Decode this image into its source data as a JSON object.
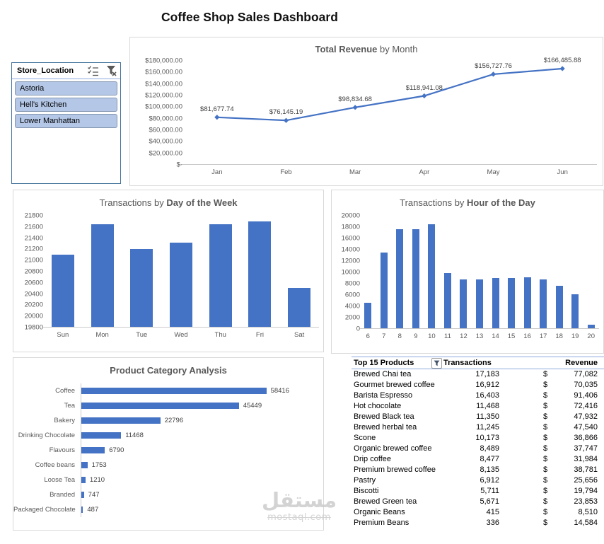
{
  "page": {
    "title": "Coffee Shop Sales Dashboard"
  },
  "colors": {
    "accent": "#4472C4",
    "muted_text": "#595959",
    "panel_border": "#D9D9D9",
    "axis_line": "#C9C9C9",
    "slicer_item_fill": "#B4C7E7",
    "slicer_border": "#41719C",
    "table_header_border": "#8EA9DB"
  },
  "slicer": {
    "title": "Store_Location",
    "icons": [
      "multi-select-icon",
      "clear-filter-icon"
    ],
    "items": [
      {
        "label": "Astoria",
        "selected": true
      },
      {
        "label": "Hell's Kitchen",
        "selected": true
      },
      {
        "label": "Lower Manhattan",
        "selected": true
      }
    ]
  },
  "chart_data": [
    {
      "id": "total-revenue-by-month",
      "type": "line",
      "title": {
        "bold": "Total Revenue",
        "post": " by Month"
      },
      "categories": [
        "Jan",
        "Feb",
        "Mar",
        "Apr",
        "May",
        "Jun"
      ],
      "values": [
        81677.74,
        76145.19,
        98834.68,
        118941.08,
        156727.76,
        166485.88
      ],
      "point_labels": [
        "$81,677.74",
        "$76,145.19",
        "$98,834.68",
        "$118,941.08",
        "$156,727.76",
        "$166,485.88"
      ],
      "y_ticks": [
        "$180,000.00",
        "$160,000.00",
        "$140,000.00",
        "$120,000.00",
        "$100,000.00",
        "$80,000.00",
        "$60,000.00",
        "$40,000.00",
        "$20,000.00",
        "$-"
      ],
      "ylim": [
        0,
        180000
      ],
      "grid": false,
      "legend": "none"
    },
    {
      "id": "transactions-by-day",
      "type": "bar",
      "title": {
        "pre": "Transactions by ",
        "bold": "Day of the Week"
      },
      "categories": [
        "Sun",
        "Mon",
        "Tue",
        "Wed",
        "Thu",
        "Fri",
        "Sat"
      ],
      "values": [
        21100,
        21650,
        21200,
        21310,
        21650,
        21700,
        20500
      ],
      "ylim": [
        19800,
        21800
      ],
      "y_tick_step": 200,
      "grid": false,
      "legend": "none"
    },
    {
      "id": "transactions-by-hour",
      "type": "bar",
      "title": {
        "pre": "Transactions by ",
        "bold": "Hour of the Day"
      },
      "categories": [
        "6",
        "7",
        "8",
        "9",
        "10",
        "11",
        "12",
        "13",
        "14",
        "15",
        "16",
        "17",
        "18",
        "19",
        "20"
      ],
      "values": [
        4500,
        13400,
        17550,
        17650,
        18550,
        9800,
        8650,
        8650,
        8900,
        8900,
        9050,
        8650,
        7550,
        6050,
        650
      ],
      "ylim": [
        0,
        20000
      ],
      "y_tick_step": 2000,
      "grid": false,
      "legend": "none"
    },
    {
      "id": "product-category-analysis",
      "type": "bar-horizontal",
      "title": {
        "bold": "Product Category Analysis"
      },
      "categories": [
        "Coffee",
        "Tea",
        "Bakery",
        "Drinking Chocolate",
        "Flavours",
        "Coffee beans",
        "Loose Tea",
        "Branded",
        "Packaged Chocolate"
      ],
      "values": [
        58416,
        45449,
        22796,
        11468,
        6790,
        1753,
        1210,
        747,
        487
      ],
      "value_labels": [
        "58416",
        "45449",
        "22796",
        "11468",
        "6790",
        "1753",
        "1210",
        "747",
        "487"
      ],
      "xlim": [
        0,
        60000
      ],
      "grid": false,
      "legend": "none"
    }
  ],
  "table": {
    "headers": [
      "Top 15 Products",
      "Transactions",
      "Revenue"
    ],
    "currency": "$",
    "rows": [
      {
        "product": "Brewed Chai tea",
        "transactions": "17,183",
        "revenue": "77,082"
      },
      {
        "product": "Gourmet brewed coffee",
        "transactions": "16,912",
        "revenue": "70,035"
      },
      {
        "product": "Barista Espresso",
        "transactions": "16,403",
        "revenue": "91,406"
      },
      {
        "product": "Hot chocolate",
        "transactions": "11,468",
        "revenue": "72,416"
      },
      {
        "product": "Brewed Black tea",
        "transactions": "11,350",
        "revenue": "47,932"
      },
      {
        "product": "Brewed herbal tea",
        "transactions": "11,245",
        "revenue": "47,540"
      },
      {
        "product": "Scone",
        "transactions": "10,173",
        "revenue": "36,866"
      },
      {
        "product": "Organic brewed coffee",
        "transactions": "8,489",
        "revenue": "37,747"
      },
      {
        "product": "Drip coffee",
        "transactions": "8,477",
        "revenue": "31,984"
      },
      {
        "product": "Premium brewed coffee",
        "transactions": "8,135",
        "revenue": "38,781"
      },
      {
        "product": "Pastry",
        "transactions": "6,912",
        "revenue": "25,656"
      },
      {
        "product": "Biscotti",
        "transactions": "5,711",
        "revenue": "19,794"
      },
      {
        "product": "Brewed Green tea",
        "transactions": "5,671",
        "revenue": "23,853"
      },
      {
        "product": "Organic Beans",
        "transactions": "415",
        "revenue": "8,510"
      },
      {
        "product": "Premium Beans",
        "transactions": "336",
        "revenue": "14,584"
      }
    ]
  },
  "watermark": {
    "arabic": "مستقل",
    "domain": "mostaql.com"
  }
}
